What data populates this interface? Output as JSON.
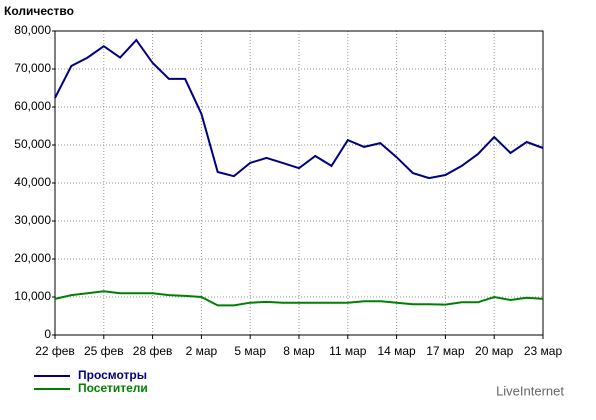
{
  "chart_data": {
    "type": "line",
    "title": "Количество",
    "categories": [
      "22 фев",
      null,
      null,
      "25 фев",
      null,
      null,
      "28 фев",
      null,
      null,
      "2 мар",
      null,
      null,
      "5 мар",
      null,
      null,
      "8 мар",
      null,
      null,
      "11 мар",
      null,
      null,
      "14 мар",
      null,
      null,
      "17 мар",
      null,
      null,
      "20 мар",
      null,
      null,
      "23 мар"
    ],
    "series": [
      {
        "name": "Просмотры",
        "color": "#000080",
        "values": [
          62400,
          70800,
          73000,
          76000,
          73000,
          77600,
          71600,
          67400,
          67400,
          58200,
          42900,
          41800,
          45300,
          46600,
          45300,
          43900,
          47100,
          44500,
          51300,
          49500,
          50500,
          46800,
          42600,
          41300,
          42100,
          44500,
          47600,
          52100,
          47900,
          50800,
          49200
        ]
      },
      {
        "name": "Посетители",
        "color": "#008000",
        "values": [
          9500,
          10500,
          11000,
          11500,
          11000,
          11000,
          11000,
          10500,
          10300,
          10000,
          7800,
          7800,
          8500,
          8700,
          8500,
          8500,
          8500,
          8500,
          8500,
          8900,
          8900,
          8500,
          8100,
          8100,
          8000,
          8600,
          8600,
          10000,
          9200,
          9800,
          9500
        ]
      }
    ],
    "ylim": [
      0,
      80000
    ],
    "yticks": [
      0,
      {
        "value": 10000,
        "label": "10,000"
      },
      {
        "value": 20000,
        "label": "20,000"
      },
      {
        "value": 30000,
        "label": "30,000"
      },
      {
        "value": 40000,
        "label": "40,000"
      },
      {
        "value": 50000,
        "label": "50,000"
      },
      {
        "value": 60000,
        "label": "60,000"
      },
      {
        "value": 70000,
        "label": "70,000"
      },
      {
        "value": 80000,
        "label": "80,000"
      }
    ],
    "grid": true,
    "brand": "LiveInternet"
  }
}
